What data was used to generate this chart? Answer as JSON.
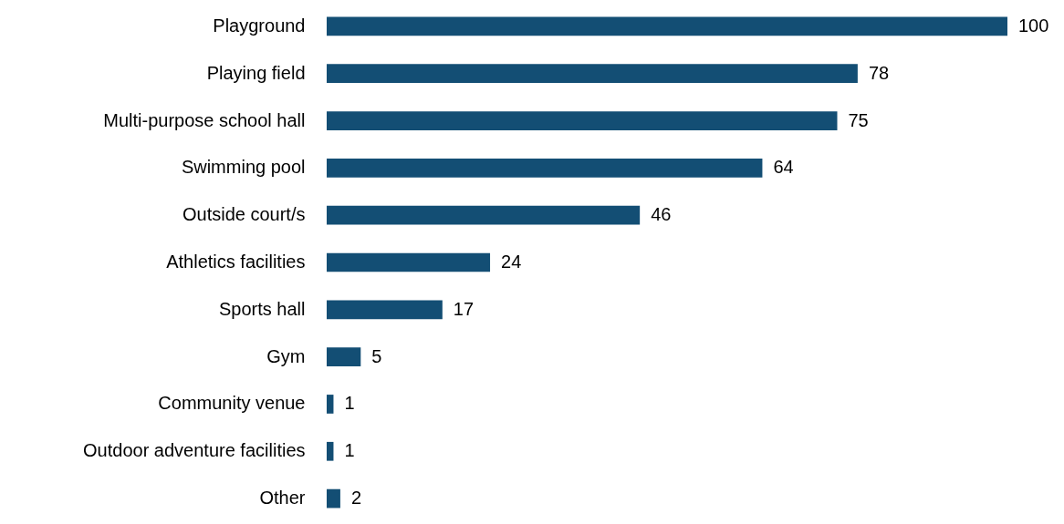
{
  "chart_data": {
    "type": "bar",
    "orientation": "horizontal",
    "categories": [
      "Playground",
      "Playing field",
      "Multi-purpose school hall",
      "Swimming pool",
      "Outside court/s",
      "Athletics facilities",
      "Sports hall",
      "Gym",
      "Community venue",
      "Outdoor adventure facilities",
      "Other"
    ],
    "values": [
      100,
      78,
      75,
      64,
      46,
      24,
      17,
      5,
      1,
      1,
      2
    ],
    "color": "#134e74",
    "data_labels": true
  }
}
